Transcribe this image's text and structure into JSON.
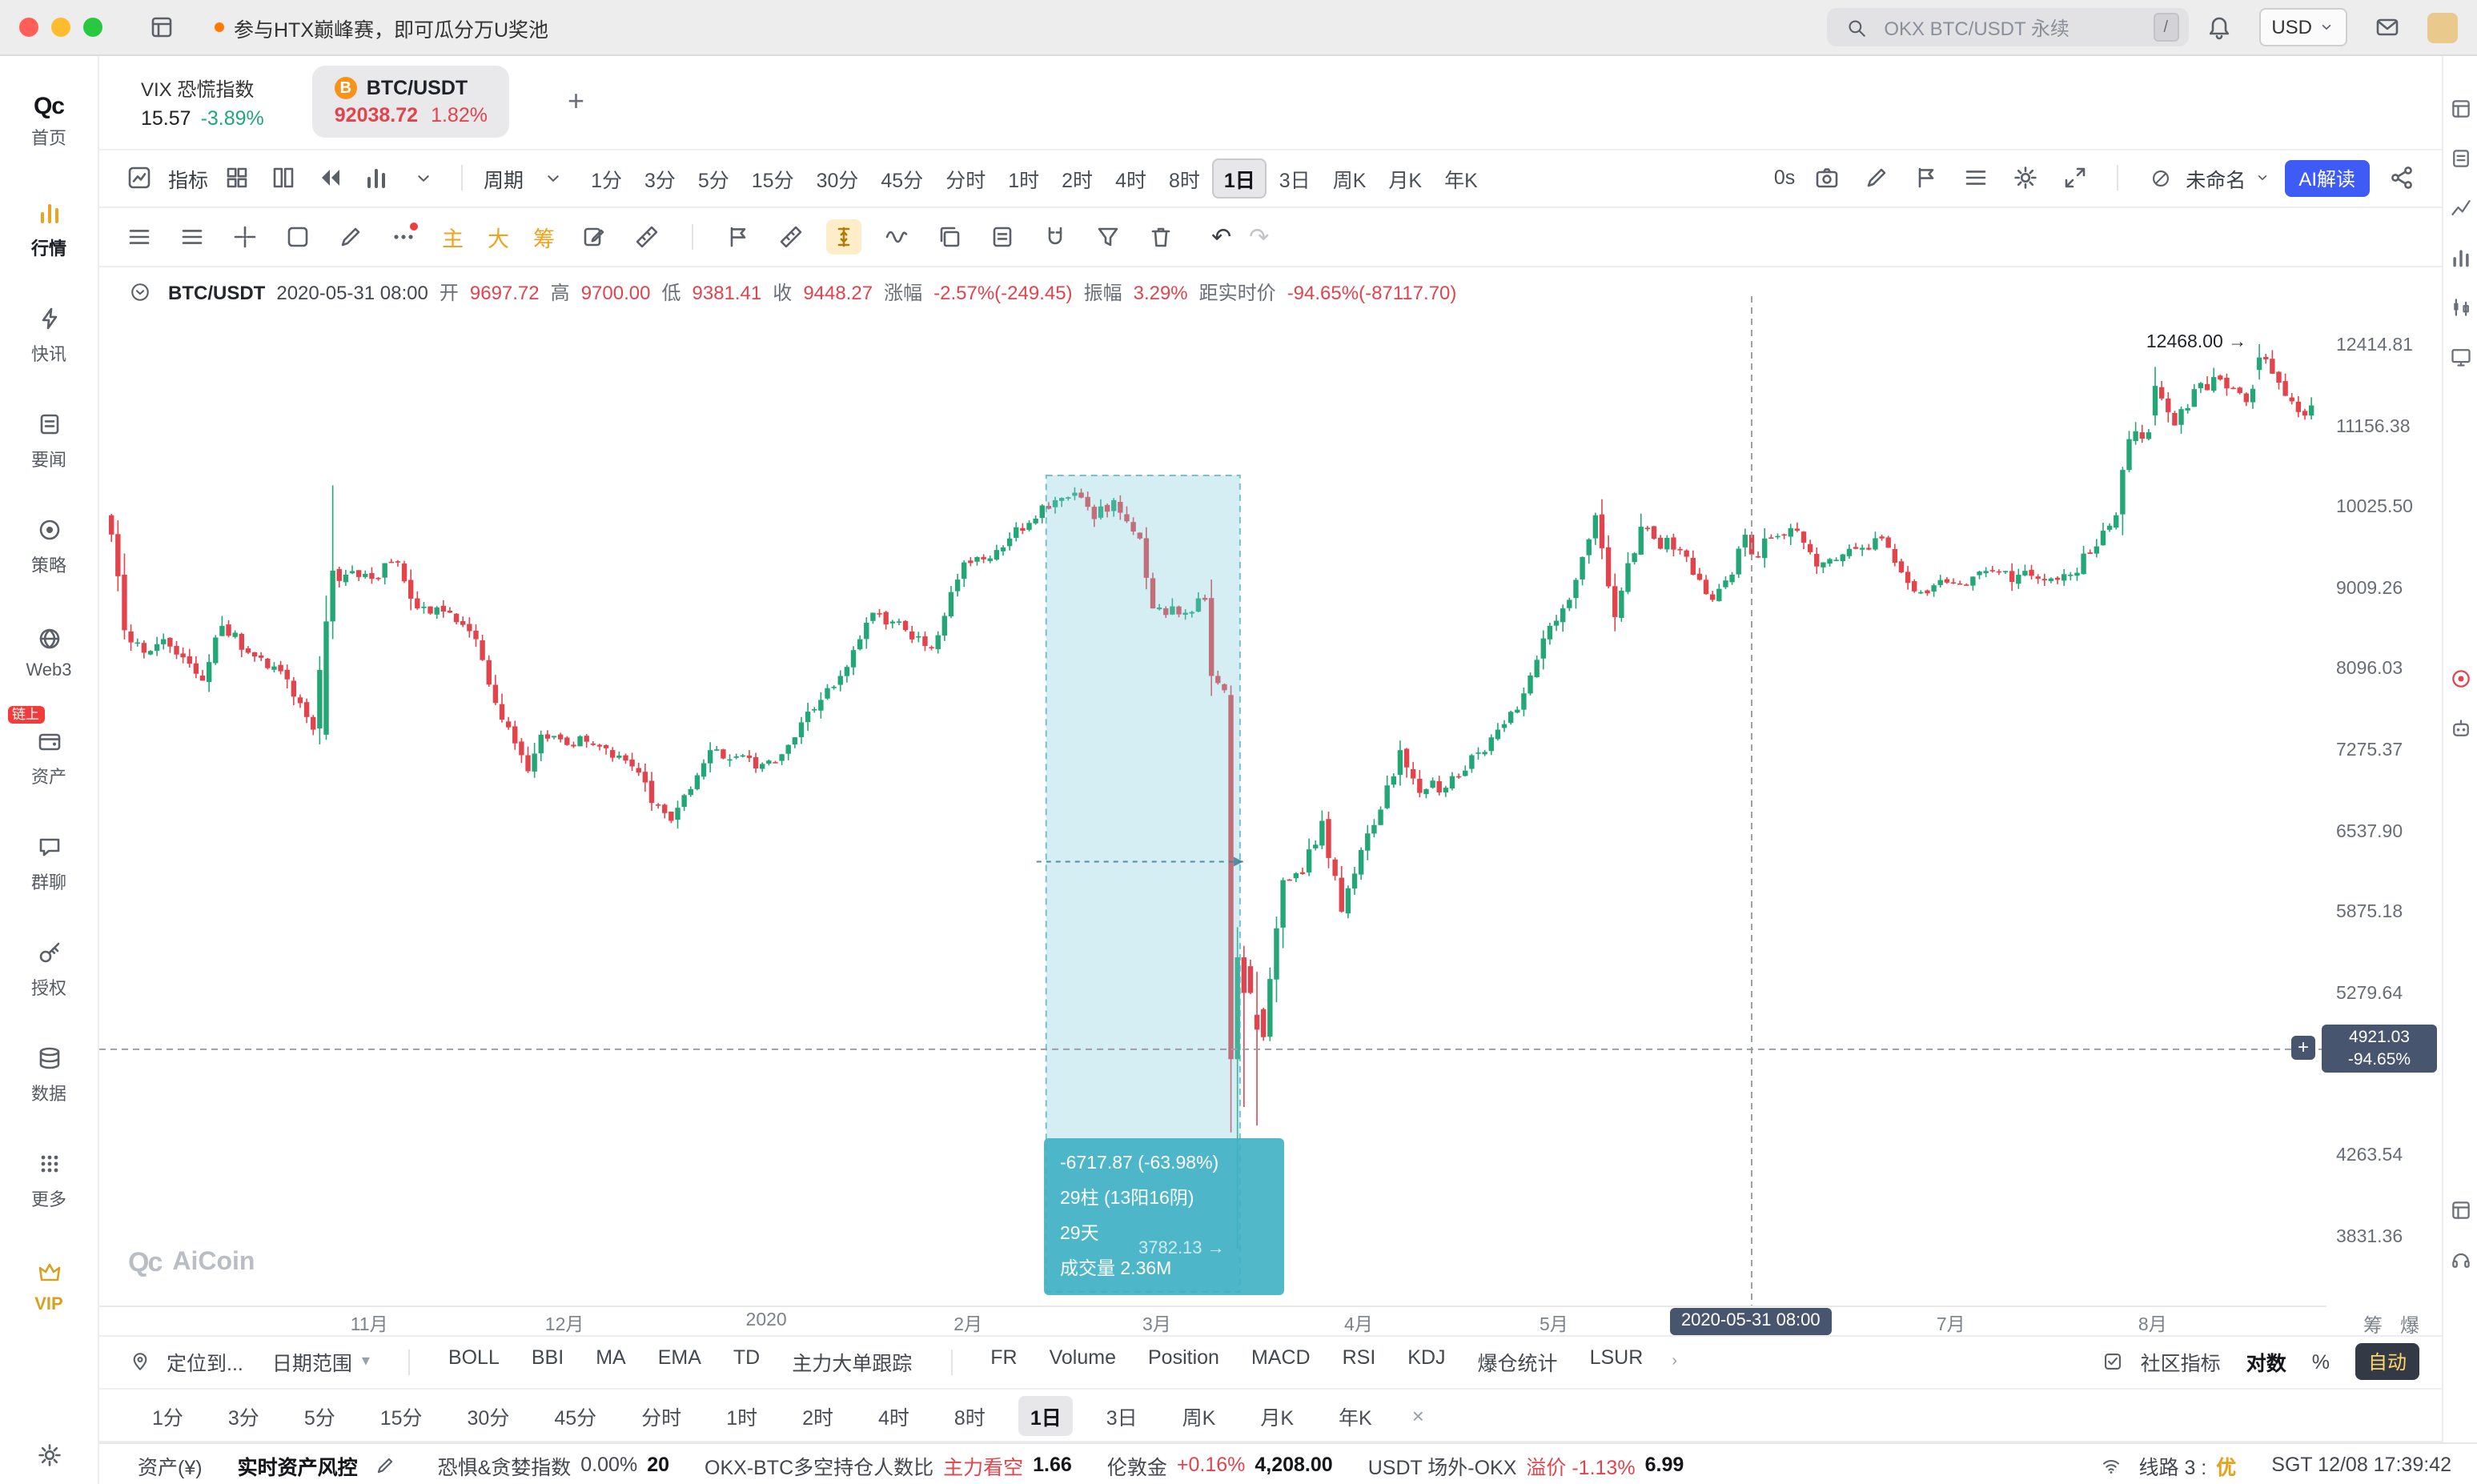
{
  "colors": {
    "up_text": "#e2444d",
    "down_text": "#21a67a",
    "candle_up": "#23a776",
    "candle_down": "#e2444d",
    "accent_blue": "#3f5bf5",
    "gold": "#f0a11e",
    "badge_slate": "#47566e",
    "measure_teal": "#3eb0c4"
  },
  "titlebar": {
    "announcement": "参与HTX巅峰赛，即可瓜分万U奖池",
    "search_placeholder": "OKX BTC/USDT 永续",
    "search_key": "/",
    "currency": "USD"
  },
  "sidebar": {
    "logo_text": "Qc",
    "items": [
      {
        "id": "home",
        "label": "首页",
        "logo": true
      },
      {
        "id": "market",
        "label": "行情",
        "icon": "bars",
        "active": true
      },
      {
        "id": "flashnews",
        "label": "快讯",
        "icon": "bolt"
      },
      {
        "id": "news",
        "label": "要闻",
        "icon": "doc"
      },
      {
        "id": "strategy",
        "label": "策略",
        "icon": "target"
      },
      {
        "id": "web3",
        "label": "Web3",
        "icon": "globe"
      },
      {
        "id": "assets",
        "label": "资产",
        "icon": "wallet",
        "badge": "链上"
      },
      {
        "id": "groupchat",
        "label": "群聊",
        "icon": "chat"
      },
      {
        "id": "authorize",
        "label": "授权",
        "icon": "key"
      },
      {
        "id": "data",
        "label": "数据",
        "icon": "db"
      },
      {
        "id": "more",
        "label": "更多",
        "icon": "dots9"
      },
      {
        "id": "vip",
        "label": "VIP",
        "icon": "crown",
        "vip": true
      }
    ]
  },
  "tabs": {
    "vix": {
      "title": "VIX 恐慌指数",
      "value": "15.57",
      "change": "-3.89%"
    },
    "btc": {
      "title": "BTC/USDT",
      "value": "92038.72",
      "change": "1.82%"
    },
    "add": "+"
  },
  "toolbar": {
    "indicator_label": "指标",
    "period_label": "周期",
    "timeframes": [
      "1分",
      "3分",
      "5分",
      "15分",
      "30分",
      "45分",
      "分时",
      "1时",
      "2时",
      "4时",
      "8时",
      "1日",
      "3日",
      "周K",
      "月K",
      "年K"
    ],
    "active_timeframe": "1日",
    "zero_label": "0s",
    "template_name": "未命名",
    "ai_label": "AI解读",
    "left_icons": [
      "indicator-icon",
      "grid-layout-icon",
      "columns-icon",
      "rewind-icon",
      "volume-bars-icon",
      "chevron-down-icon"
    ],
    "right_icons": [
      "camera-icon",
      "pencil-icon",
      "bookmark-icon",
      "list-settings-icon",
      "gear-icon",
      "collapse-icon",
      "share-icon"
    ]
  },
  "drawbar": {
    "chips": [
      "主",
      "大",
      "筹"
    ],
    "icons_left": [
      "lines-menu-icon",
      "layers-menu-icon",
      "crosshair-icon",
      "rectangle-tool-icon",
      "brush-icon",
      "more-tools-icon"
    ],
    "icons_right": [
      "edit-note-icon",
      "angle-ruler-icon",
      "flag-marker-icon",
      "ruler-icon",
      "price-range-icon",
      "wave-icon",
      "copy-icon",
      "clipboard-icon",
      "magnet-icon",
      "filter-icon",
      "trash-icon"
    ],
    "active_icon": "price-range-icon",
    "undo": "↶",
    "redo": "↷"
  },
  "infoline": {
    "symbol": "BTC/USDT",
    "date": "2020-05-31 08:00",
    "fields": [
      {
        "l": "开",
        "v": "9697.72"
      },
      {
        "l": "高",
        "v": "9700.00"
      },
      {
        "l": "低",
        "v": "9381.41"
      },
      {
        "l": "收",
        "v": "9448.27"
      },
      {
        "l": "涨幅",
        "v": "-2.57%(-249.45)"
      },
      {
        "l": "振幅",
        "v": "3.29%"
      },
      {
        "l": "距实时价",
        "v": "-94.65%(-87117.70)"
      }
    ]
  },
  "chart": {
    "high_label": "12468.00 →",
    "ghost_label": "3782.13 →",
    "date_badge": "2020-05-31 08:00",
    "price_badge_line1": "4921.03",
    "price_badge_line2": "-94.65%",
    "plus_label": "+",
    "measure_tooltip": [
      "-6717.87 (-63.98%)",
      "29柱 (13阳16阴)",
      "29天",
      "成交量 2.36M"
    ],
    "watermark": "AiCoin",
    "axis_toggles": [
      "筹",
      "爆"
    ]
  },
  "chart_data": {
    "type": "candlestick",
    "symbol": "BTC/USDT",
    "timeframe": "1日",
    "scale": "log",
    "start_date": "2019-09-22",
    "total_days": 339,
    "y_ticks": [
      12414.81,
      11156.38,
      10025.5,
      9009.26,
      8096.03,
      7275.37,
      6537.9,
      5875.18,
      5279.64,
      4263.54,
      3831.36
    ],
    "x_ticks": [
      {
        "label": "11月",
        "day": 40
      },
      {
        "label": "12月",
        "day": 70
      },
      {
        "label": "2020",
        "day": 101
      },
      {
        "label": "2月",
        "day": 132
      },
      {
        "label": "3月",
        "day": 161
      },
      {
        "label": "4月",
        "day": 192
      },
      {
        "label": "5月",
        "day": 222
      },
      {
        "label": "7月",
        "day": 283
      },
      {
        "label": "8月",
        "day": 314
      }
    ],
    "anchors": [
      [
        0,
        9700
      ],
      [
        2,
        8550
      ],
      [
        5,
        8300
      ],
      [
        8,
        8450
      ],
      [
        11,
        8250
      ],
      [
        14,
        8000
      ],
      [
        17,
        8600
      ],
      [
        21,
        8300
      ],
      [
        26,
        8100
      ],
      [
        31,
        7500
      ],
      [
        33,
        8650
      ],
      [
        34,
        9250
      ],
      [
        36,
        9200
      ],
      [
        40,
        9150
      ],
      [
        44,
        9350
      ],
      [
        47,
        8800
      ],
      [
        52,
        8750
      ],
      [
        56,
        8450
      ],
      [
        60,
        7600
      ],
      [
        64,
        7100
      ],
      [
        66,
        7450
      ],
      [
        70,
        7350
      ],
      [
        74,
        7350
      ],
      [
        79,
        7200
      ],
      [
        86,
        6650
      ],
      [
        92,
        7300
      ],
      [
        97,
        7250
      ],
      [
        101,
        7200
      ],
      [
        104,
        7350
      ],
      [
        109,
        7800
      ],
      [
        112,
        8050
      ],
      [
        117,
        8750
      ],
      [
        121,
        8650
      ],
      [
        126,
        8350
      ],
      [
        131,
        9350
      ],
      [
        135,
        9400
      ],
      [
        138,
        9650
      ],
      [
        141,
        9850
      ],
      [
        145,
        10150
      ],
      [
        148,
        10250
      ],
      [
        151,
        9900
      ],
      [
        154,
        10150
      ],
      [
        158,
        9650
      ],
      [
        160,
        8800
      ],
      [
        165,
        8750
      ],
      [
        168,
        8900
      ],
      [
        169,
        8050
      ],
      [
        171,
        7900
      ],
      [
        172,
        4857
      ],
      [
        173,
        5555
      ],
      [
        175,
        5300
      ],
      [
        177,
        5000
      ],
      [
        180,
        6150
      ],
      [
        183,
        6200
      ],
      [
        186,
        6650
      ],
      [
        189,
        5900
      ],
      [
        192,
        6400
      ],
      [
        195,
        6750
      ],
      [
        198,
        7300
      ],
      [
        201,
        6900
      ],
      [
        207,
        7050
      ],
      [
        213,
        7500
      ],
      [
        216,
        7700
      ],
      [
        221,
        8600
      ],
      [
        224,
        8900
      ],
      [
        228,
        9950
      ],
      [
        231,
        8700
      ],
      [
        235,
        9800
      ],
      [
        241,
        9500
      ],
      [
        246,
        8900
      ],
      [
        249,
        9200
      ],
      [
        251,
        9697.72
      ],
      [
        252,
        9448.27
      ],
      [
        254,
        9650
      ],
      [
        259,
        9750
      ],
      [
        262,
        9300
      ],
      [
        266,
        9450
      ],
      [
        272,
        9650
      ],
      [
        277,
        9000
      ],
      [
        283,
        9100
      ],
      [
        289,
        9250
      ],
      [
        296,
        9150
      ],
      [
        301,
        9200
      ],
      [
        305,
        9550
      ],
      [
        308,
        9950
      ],
      [
        310,
        11000
      ],
      [
        313,
        11100
      ],
      [
        314,
        11800
      ],
      [
        317,
        11200
      ],
      [
        320,
        11750
      ],
      [
        324,
        11900
      ],
      [
        328,
        11550
      ],
      [
        330,
        12250
      ],
      [
        333,
        11850
      ],
      [
        336,
        11400
      ],
      [
        338,
        11500
      ]
    ],
    "overrides": {
      "33": [
        7450,
        8950,
        7400,
        8650
      ],
      "34": [
        8650,
        10350,
        8450,
        9250
      ],
      "172": [
        7850,
        7950,
        4410,
        4857
      ],
      "173": [
        4857,
        5780,
        3782.13,
        5555
      ],
      "174": [
        5555,
        5640,
        4560,
        5300
      ],
      "176": [
        5150,
        5450,
        4450,
        5050
      ],
      "252": [
        9697.72,
        9700.0,
        9381.41,
        9448.27
      ],
      "314": [
        11350,
        12100,
        11200,
        11800
      ],
      "330": [
        12050,
        12468.0,
        11900,
        12250
      ]
    },
    "selected_candle": {
      "date": "2020-05-31 08:00",
      "open": 9697.72,
      "high": 9700.0,
      "low": 9381.41,
      "close": 9448.27,
      "change_pct": -2.57,
      "change_abs": -249.45,
      "amplitude_pct": 3.29
    },
    "crosshair": {
      "day": 252,
      "date": "2020-05-31 08:00",
      "price": 4921.03,
      "pct_vs_live": -94.65,
      "abs_vs_live": -87117.7
    },
    "live_price": 92038.72,
    "high_marker": {
      "day": 330,
      "price": 12468.0
    },
    "measure": {
      "start_day": 144,
      "end_day": 173,
      "from_price": 10500.0,
      "to_price": 3782.13,
      "change": -6717.87,
      "change_pct": -63.98,
      "bars": 29,
      "up_bars": 13,
      "down_bars": 16,
      "days": 29,
      "volume": "2.36M"
    }
  },
  "bottombar": {
    "locate_label": "定位到...",
    "daterange_label": "日期范围",
    "main_indicators": [
      "BOLL",
      "BBI",
      "MA",
      "EMA",
      "TD",
      "主力大单跟踪"
    ],
    "sub_indicators": [
      "FR",
      "Volume",
      "Position",
      "MACD",
      "RSI",
      "KDJ",
      "爆仓统计",
      "LSUR"
    ],
    "community_label": "社区指标",
    "log_label": "对数",
    "pct_label": "%",
    "auto_label": "自动"
  },
  "tfbar": {
    "timeframes": [
      "1分",
      "3分",
      "5分",
      "15分",
      "30分",
      "45分",
      "分时",
      "1时",
      "2时",
      "4时",
      "8时",
      "1日",
      "3日",
      "周K",
      "月K",
      "年K"
    ],
    "active": "1日",
    "close": "×"
  },
  "statusbar": {
    "asset_label": "资产(¥)",
    "risk_label": "实时资产风控",
    "fear_label": "恐惧&贪婪指数",
    "fear_pct": "0.00%",
    "fear_value": "20",
    "ratio_label": "OKX-BTC多空持仓人数比",
    "ratio_tag": "主力看空",
    "ratio_value": "1.66",
    "gold_label": "伦敦金",
    "gold_change": "+0.16%",
    "gold_value": "4,208.00",
    "usdt_label": "USDT 场外-OKX",
    "usdt_tag": "溢价 -1.13%",
    "usdt_value": "6.99",
    "line_label": "线路 3 :",
    "line_status": "优",
    "clock": "SGT 12/08 17:39:42"
  },
  "rail_icons": [
    "layout-panels-icon",
    "finance-doc-icon",
    "trend-icon",
    "stats-icon",
    "candle-chart-icon",
    "monitor-icon",
    "live-alert-icon",
    "ai-robot-icon",
    "mini-window-icon",
    "support-headset-icon"
  ]
}
